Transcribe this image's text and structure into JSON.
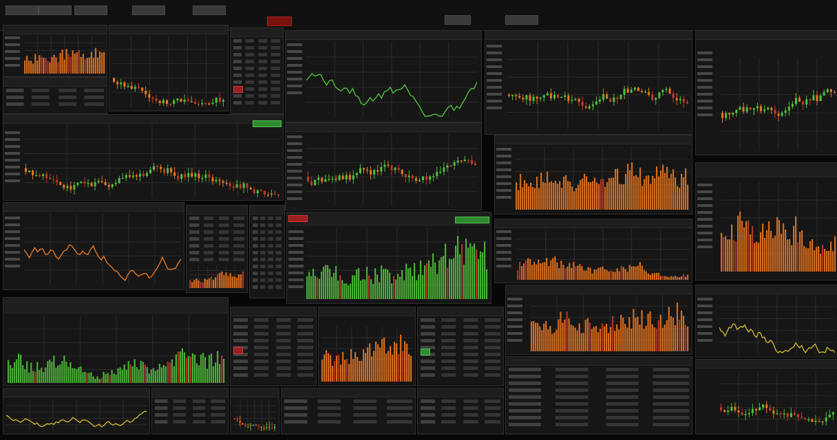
{
  "app": {
    "title": "",
    "top_tabs": [
      "",
      "",
      "",
      "",
      "",
      "",
      "",
      ""
    ]
  },
  "colors": {
    "orange": "#e8761f",
    "green": "#4fbf3a",
    "red": "#c0392b",
    "yellow": "#c9b530",
    "grid": "#2c2c2c"
  },
  "panels": [
    {
      "label": "",
      "type": "bar"
    },
    {
      "label": "",
      "type": "candlestick"
    },
    {
      "label": "",
      "type": "line"
    },
    {
      "label": "",
      "type": "candlestick"
    },
    {
      "label": "",
      "type": "candlestick"
    },
    {
      "label": "",
      "type": "line"
    },
    {
      "label": "",
      "type": "candlestick"
    },
    {
      "label": "",
      "type": "bar"
    },
    {
      "label": "",
      "type": "bar"
    },
    {
      "label": "",
      "type": "line"
    },
    {
      "label": "",
      "type": "bar"
    },
    {
      "label": "",
      "type": "line"
    },
    {
      "label": "",
      "type": "line"
    },
    {
      "label": "",
      "type": "candlestick"
    }
  ],
  "chart_data": []
}
